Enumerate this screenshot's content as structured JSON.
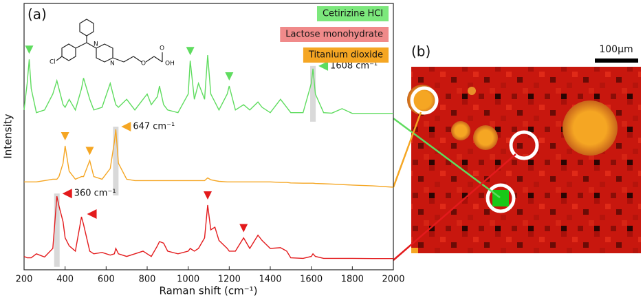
{
  "chart_data": {
    "type": "line",
    "panel_labels": [
      "(a)",
      "(b)"
    ],
    "xlabel": "Raman shift (cm⁻¹)",
    "ylabel": "Intensity",
    "xlim": [
      200,
      2000
    ],
    "xticks": [
      200,
      400,
      600,
      800,
      1000,
      1200,
      1400,
      1600,
      1800,
      2000
    ],
    "ylim": [
      0,
      100
    ],
    "scale_bar": "100μm",
    "x": [
      200,
      215,
      225,
      235,
      260,
      300,
      340,
      360,
      370,
      390,
      400,
      420,
      450,
      480,
      490,
      520,
      540,
      580,
      620,
      640,
      647,
      660,
      700,
      740,
      780,
      800,
      820,
      850,
      860,
      880,
      900,
      950,
      1000,
      1010,
      1030,
      1050,
      1080,
      1095,
      1110,
      1130,
      1150,
      1190,
      1200,
      1230,
      1270,
      1300,
      1340,
      1360,
      1400,
      1450,
      1480,
      1500,
      1560,
      1600,
      1608,
      1620,
      1660,
      1700,
      1750,
      1800,
      1900,
      2000
    ],
    "series": [
      {
        "name": "Cetirizine HCl",
        "color": "#5fdc5f",
        "legend_color": "#7ce87c",
        "values": [
          60,
          70,
          79,
          68,
          59,
          60,
          66,
          71,
          68,
          62,
          61,
          64,
          60,
          68,
          72,
          64,
          60,
          61,
          70,
          64,
          62,
          61,
          64,
          60,
          64,
          66,
          62,
          65,
          69,
          62,
          60,
          59,
          66,
          78.5,
          64,
          70,
          64,
          80.6,
          66,
          63,
          60,
          66,
          69,
          60,
          62,
          60,
          63,
          61,
          59,
          64,
          61,
          59,
          59,
          70,
          75.5,
          66,
          59,
          58.8,
          60.5,
          58.7,
          58.7,
          58.7
        ],
        "peak_markers": [
          225,
          1010,
          1200
        ],
        "side_markers": [
          1608
        ],
        "annotations": [
          {
            "text": "1608 cm⁻¹",
            "x": 1608
          }
        ]
      },
      {
        "name": "Lactose monohydrate",
        "color": "#e31a1c",
        "legend_color": "#f08a8a",
        "values": [
          5,
          4.5,
          4.5,
          4.5,
          6,
          4.8,
          8,
          27.6,
          24,
          18,
          12,
          9,
          7,
          19.9,
          17,
          7,
          6,
          6.5,
          5.5,
          6,
          8,
          6,
          5,
          6,
          7,
          6,
          5,
          9,
          10.6,
          10,
          7,
          6,
          7,
          8,
          7,
          8,
          12,
          24.3,
          15,
          16,
          11,
          8,
          7,
          7,
          12,
          8,
          13,
          11,
          8,
          8.3,
          7,
          4.5,
          4.3,
          5,
          6,
          5,
          4.3,
          4.3,
          4.3,
          4.3,
          4.2,
          4.2
        ],
        "peak_markers": [
          1095,
          1270
        ],
        "side_markers": [
          360,
          480
        ],
        "annotations": [
          {
            "text": "360 cm⁻¹",
            "x": 360
          }
        ]
      },
      {
        "name": "Titanium dioxide",
        "color": "#f5a623",
        "legend_color": "#f5a623",
        "values": [
          33,
          33,
          33,
          33,
          33,
          33.5,
          34,
          34,
          35,
          40,
          46.5,
          37,
          34,
          35,
          35,
          41,
          35,
          34,
          38,
          48,
          52.7,
          40,
          34,
          33.5,
          33.5,
          33.5,
          33.5,
          33.5,
          33.5,
          33.5,
          33.5,
          33.5,
          33.5,
          33.5,
          33.5,
          33.5,
          33.5,
          34.5,
          33.8,
          33.5,
          33.2,
          33,
          33,
          33,
          33,
          33,
          33,
          33,
          33,
          32.8,
          32.8,
          32.6,
          32.5,
          32.5,
          32.5,
          32.4,
          32.3,
          32.2,
          32,
          31.8,
          31.5,
          31
        ],
        "peak_markers": [
          400,
          520
        ],
        "side_markers": [
          647
        ],
        "annotations": [
          {
            "text": "647 cm⁻¹",
            "x": 647
          }
        ]
      }
    ]
  }
}
